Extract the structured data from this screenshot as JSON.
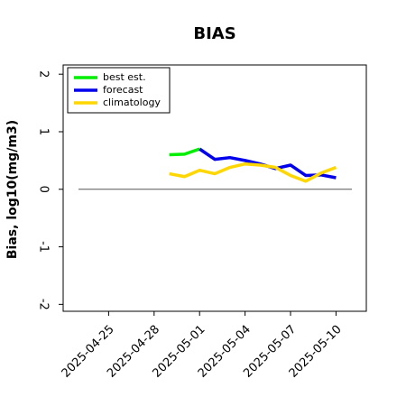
{
  "chart_data": {
    "type": "line",
    "title": "BIAS",
    "ylabel": "Bias, log10(mg/m3)",
    "x": [
      "2025-04-29",
      "2025-04-30",
      "2025-05-01",
      "2025-05-02",
      "2025-05-03",
      "2025-05-04",
      "2025-05-05",
      "2025-05-06",
      "2025-05-07",
      "2025-05-08",
      "2025-05-09",
      "2025-05-10"
    ],
    "series": [
      {
        "name": "best est.",
        "color": "#00ee00",
        "values": [
          0.6,
          0.61,
          0.7,
          null,
          null,
          null,
          null,
          null,
          null,
          null,
          null,
          null
        ]
      },
      {
        "name": "forecast",
        "color": "#0000ee",
        "values": [
          null,
          null,
          0.7,
          0.52,
          0.55,
          0.5,
          0.44,
          0.36,
          0.42,
          0.24,
          0.25,
          0.2
        ]
      },
      {
        "name": "climatology",
        "color": "#ffd700",
        "values": [
          0.27,
          0.22,
          0.33,
          0.27,
          0.38,
          0.44,
          0.42,
          0.38,
          0.24,
          0.14,
          0.28,
          0.38
        ]
      }
    ],
    "xlim": [
      "2025-04-22",
      "2025-05-12"
    ],
    "xticks": [
      "2025-04-25",
      "2025-04-28",
      "2025-05-01",
      "2025-05-04",
      "2025-05-07",
      "2025-05-10"
    ],
    "xtick_colors": [
      "#000000",
      "#000000",
      "#228b22",
      "#000000",
      "#000000",
      "#000000"
    ],
    "ylim": [
      -2.12,
      2.16
    ],
    "yticks": [
      -2,
      -1,
      0,
      1,
      2
    ],
    "hline": 0,
    "legend": "upper left"
  }
}
